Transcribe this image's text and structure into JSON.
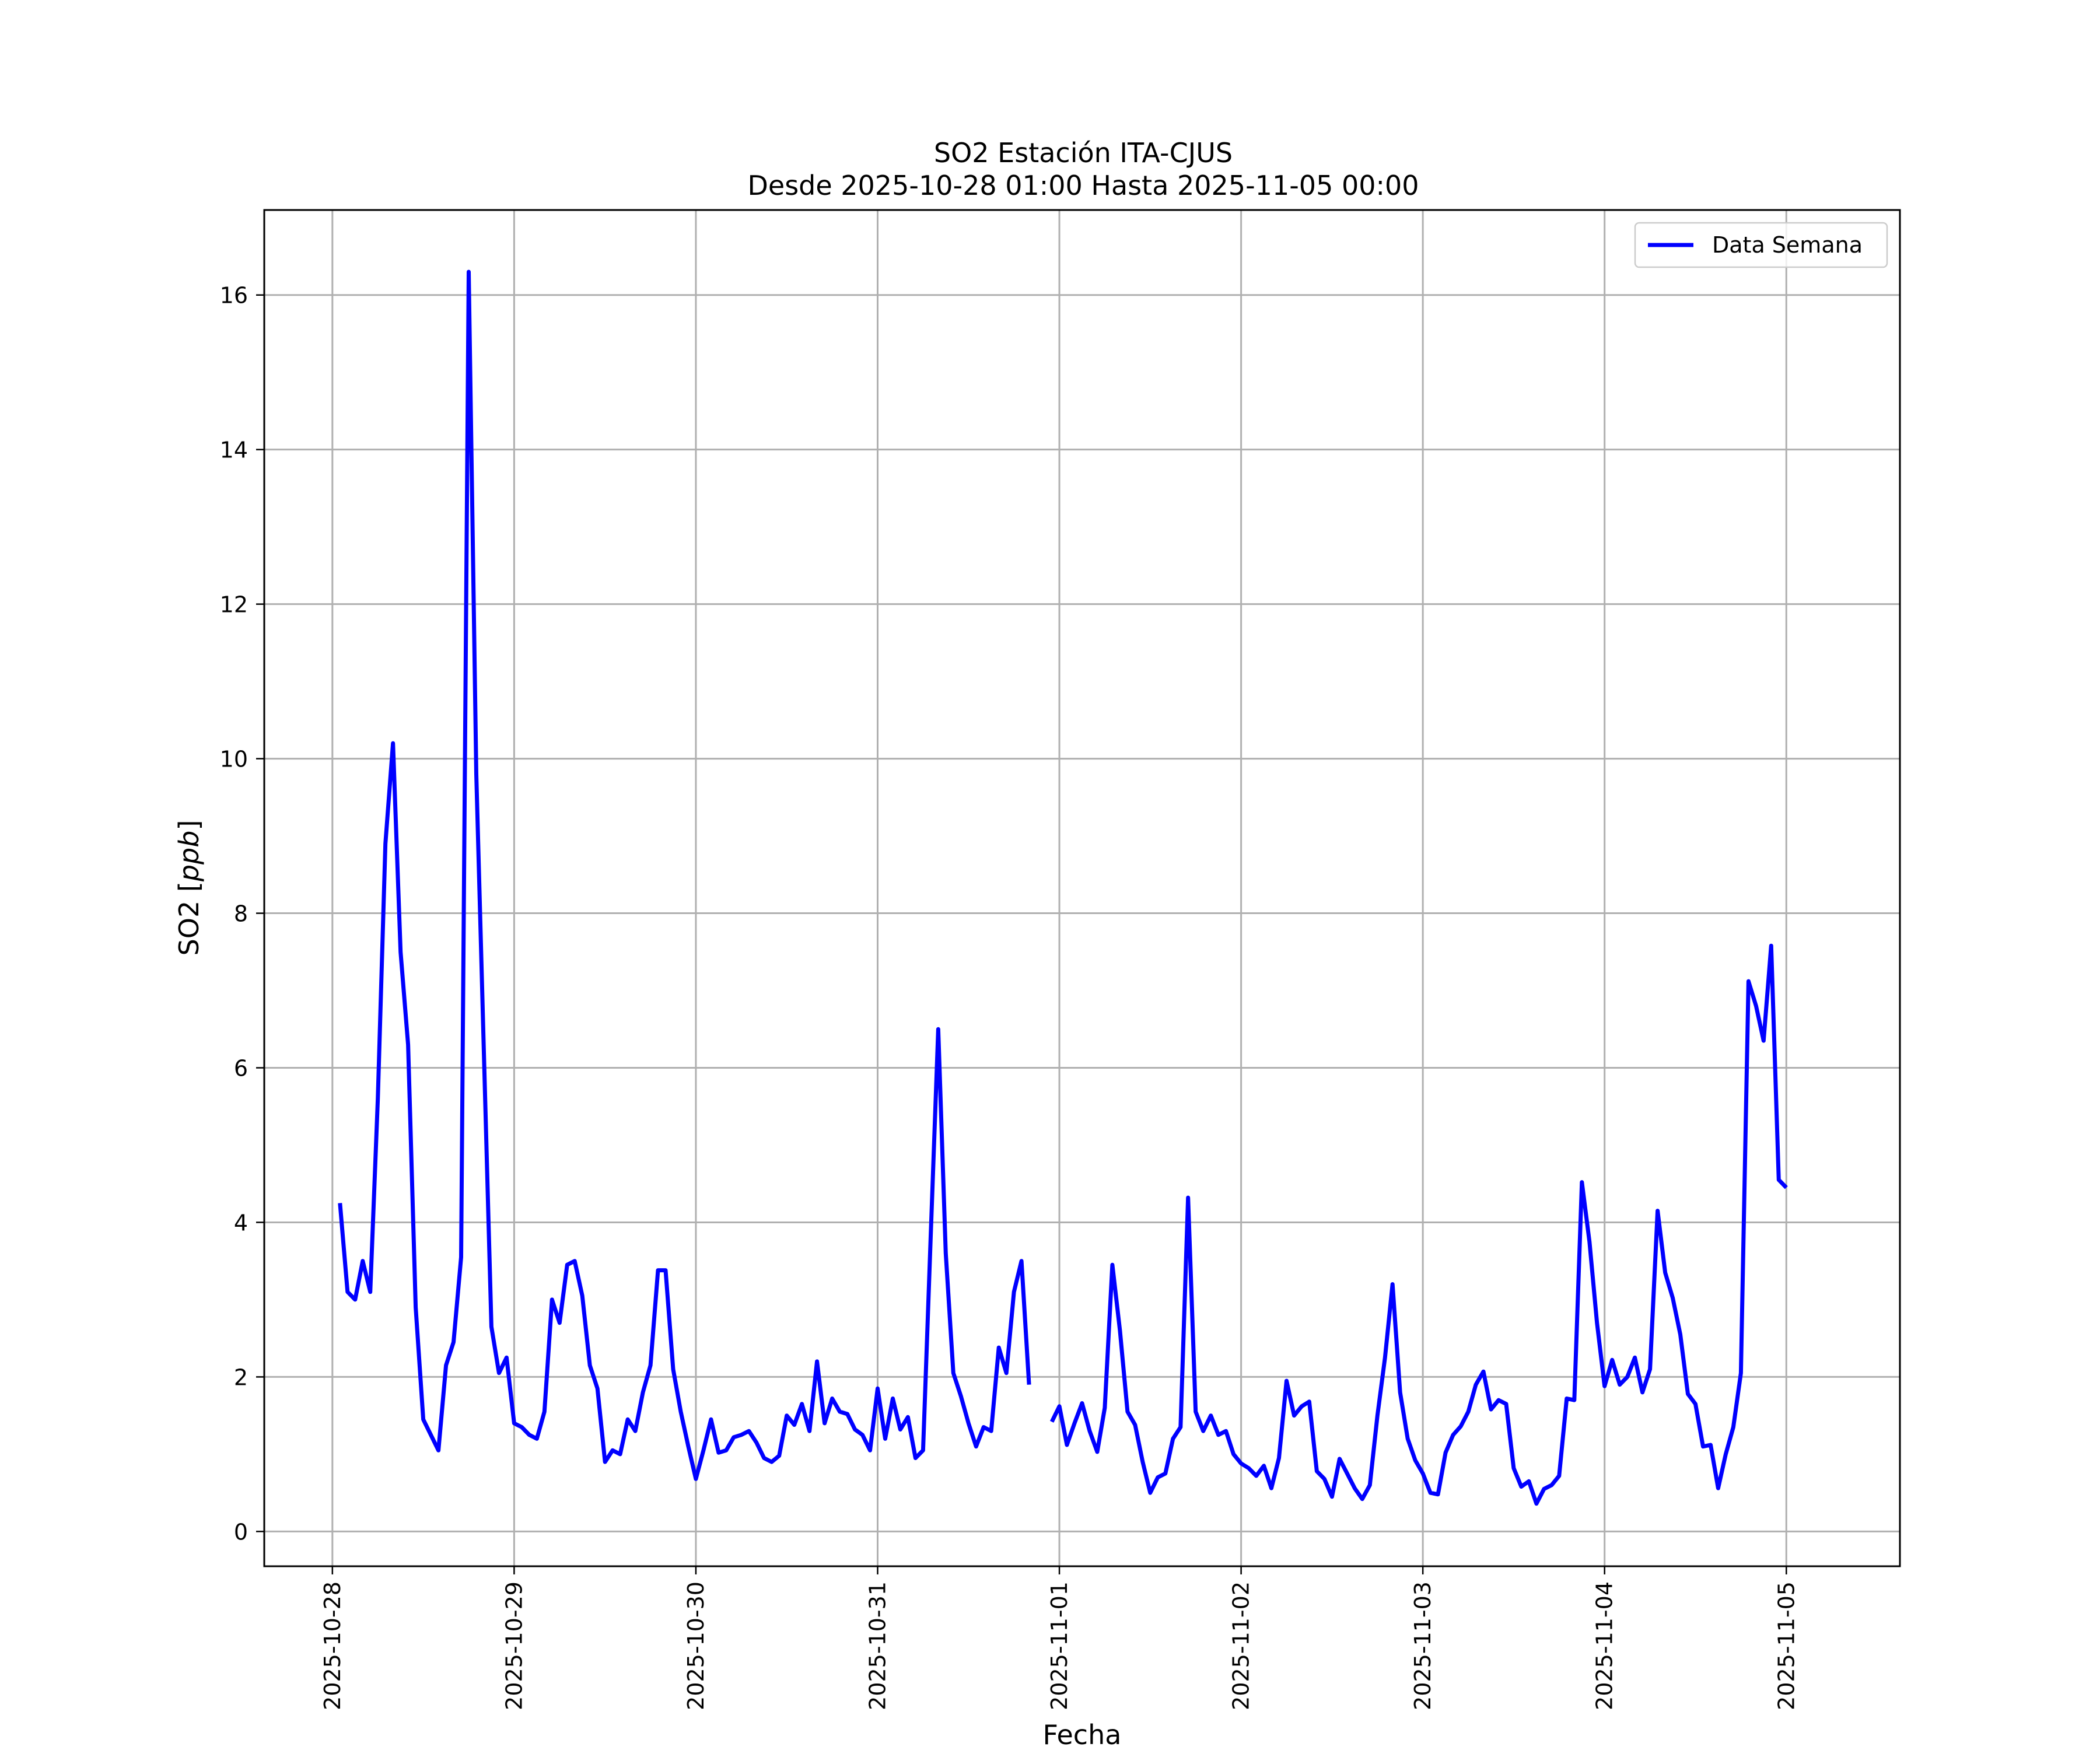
{
  "chart_data": {
    "type": "line",
    "title": "SO2 Estación ITA-CJUS",
    "subtitle": "Desde 2025-10-28 01:00 Hasta 2025-11-05 00:00",
    "xlabel": "Fecha",
    "ylabel_main": "SO2 [",
    "ylabel_unit": "ppb",
    "ylabel_end": "]",
    "xlim": [
      "2025-10-27T15:00",
      "2025-11-05T15:00"
    ],
    "ylim": [
      -0.45,
      17.1
    ],
    "x_ticks": [
      "2025-10-28",
      "2025-10-29",
      "2025-10-30",
      "2025-10-31",
      "2025-11-01",
      "2025-11-02",
      "2025-11-03",
      "2025-11-04",
      "2025-11-05"
    ],
    "y_ticks": [
      0,
      2,
      4,
      6,
      8,
      10,
      12,
      14,
      16
    ],
    "y_tick_labels": [
      "0",
      "2",
      "4",
      "6",
      "8",
      "10",
      "12",
      "14",
      "16"
    ],
    "grid": true,
    "legend_position": "top-right",
    "series_color": "#0000ff",
    "series": [
      {
        "name": "Data Semana",
        "x_start": "2025-10-28T01:00",
        "interval_hours": 1,
        "values": [
          4.25,
          3.1,
          3.0,
          3.5,
          3.1,
          5.6,
          8.9,
          10.2,
          7.5,
          6.3,
          2.9,
          1.45,
          1.25,
          1.05,
          2.15,
          2.45,
          3.55,
          16.3,
          9.8,
          6.2,
          2.65,
          2.05,
          2.25,
          1.4,
          1.35,
          1.25,
          1.2,
          1.55,
          3.0,
          2.7,
          3.45,
          3.5,
          3.05,
          2.15,
          1.85,
          0.9,
          1.05,
          1.0,
          1.45,
          1.3,
          1.8,
          2.15,
          3.38,
          3.38,
          2.1,
          1.55,
          1.1,
          0.68,
          1.05,
          1.45,
          1.02,
          1.05,
          1.22,
          1.25,
          1.3,
          1.15,
          0.95,
          0.9,
          0.98,
          1.5,
          1.38,
          1.65,
          1.3,
          2.2,
          1.4,
          1.72,
          1.55,
          1.52,
          1.32,
          1.25,
          1.05,
          1.85,
          1.2,
          1.72,
          1.32,
          1.48,
          0.95,
          1.05,
          3.8,
          6.5,
          3.6,
          2.05,
          1.75,
          1.4,
          1.1,
          1.35,
          1.3,
          2.38,
          2.05,
          3.1,
          3.5,
          1.9,
          null,
          null,
          1.42,
          1.62,
          1.12,
          1.4,
          1.66,
          1.3,
          1.03,
          1.6,
          3.45,
          2.6,
          1.55,
          1.38,
          0.9,
          0.5,
          0.7,
          0.75,
          1.2,
          1.35,
          4.32,
          1.55,
          1.3,
          1.5,
          1.25,
          1.3,
          1.0,
          0.88,
          0.82,
          0.72,
          0.85,
          0.56,
          0.95,
          1.95,
          1.5,
          1.62,
          1.68,
          0.78,
          0.68,
          0.45,
          0.94,
          0.75,
          0.56,
          0.42,
          0.6,
          1.5,
          2.25,
          3.2,
          1.8,
          1.2,
          0.92,
          0.75,
          0.5,
          0.48,
          1.02,
          1.25,
          1.36,
          1.55,
          1.9,
          2.07,
          1.58,
          1.7,
          1.65,
          0.82,
          0.58,
          0.65,
          0.36,
          0.55,
          0.6,
          0.72,
          1.72,
          1.7,
          4.52,
          3.75,
          2.7,
          1.88,
          2.22,
          1.9,
          2.0,
          2.25,
          1.8,
          2.1,
          4.15,
          3.35,
          3.02,
          2.55,
          1.78,
          1.65,
          1.1,
          1.12,
          0.56,
          1.0,
          1.35,
          2.05,
          7.12,
          6.8,
          6.35,
          7.58,
          4.55,
          4.45
        ]
      }
    ]
  }
}
